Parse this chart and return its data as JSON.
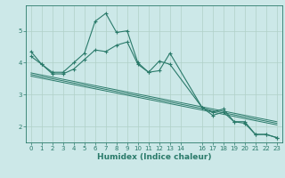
{
  "xlabel": "Humidex (Indice chaleur)",
  "bg_color": "#cce8e8",
  "grid_color": "#b0d0c8",
  "line_color": "#2a7a6a",
  "xlim": [
    -0.5,
    23.5
  ],
  "ylim": [
    1.5,
    5.8
  ],
  "xticks": [
    0,
    1,
    2,
    3,
    4,
    5,
    6,
    7,
    8,
    9,
    10,
    11,
    12,
    13,
    14,
    16,
    17,
    18,
    19,
    20,
    21,
    22,
    23
  ],
  "yticks": [
    2,
    3,
    4,
    5
  ],
  "series1_x": [
    0,
    1,
    2,
    3,
    4,
    5,
    6,
    7,
    8,
    9,
    10,
    11,
    12,
    13,
    16,
    17,
    18,
    19,
    20,
    21,
    22,
    23
  ],
  "series1_y": [
    4.35,
    3.95,
    3.7,
    3.7,
    4.0,
    4.3,
    5.3,
    5.55,
    4.95,
    5.0,
    4.0,
    3.7,
    3.75,
    4.3,
    2.6,
    2.45,
    2.55,
    2.15,
    2.15,
    1.75,
    1.75,
    1.65
  ],
  "series2_x": [
    0,
    1,
    2,
    3,
    4,
    5,
    6,
    7,
    8,
    9,
    10,
    11,
    12,
    13,
    16,
    17,
    18,
    19,
    20,
    21,
    22,
    23
  ],
  "series2_y": [
    4.2,
    3.95,
    3.65,
    3.65,
    3.8,
    4.1,
    4.4,
    4.35,
    4.55,
    4.65,
    3.95,
    3.7,
    4.05,
    3.95,
    2.6,
    2.35,
    2.45,
    2.15,
    2.1,
    1.75,
    1.75,
    1.65
  ],
  "regression_lines": [
    {
      "x": [
        0,
        23
      ],
      "y": [
        3.58,
        2.05
      ]
    },
    {
      "x": [
        0,
        23
      ],
      "y": [
        3.63,
        2.1
      ]
    },
    {
      "x": [
        0,
        23
      ],
      "y": [
        3.68,
        2.15
      ]
    }
  ]
}
